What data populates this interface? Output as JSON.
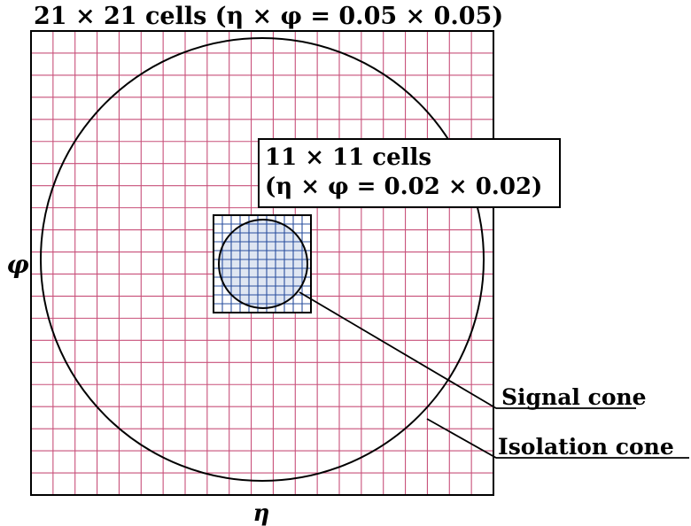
{
  "title": "21 × 21 cells (η × φ = 0.05 × 0.05)",
  "inner_box": {
    "line1": "11 × 11 cells",
    "line2": "(η × φ = 0.02 × 0.02)"
  },
  "axis_x_label": "η",
  "axis_y_label": "φ",
  "labels": {
    "signal_cone": "Signal cone",
    "isolation_cone": "Isolation cone"
  },
  "grids": {
    "outer_cells": 21,
    "inner_cells": 11
  },
  "colors": {
    "outer_grid": "#c8507a",
    "inner_grid": "#2a4f9e",
    "outline": "#000000",
    "signal_fill": "#dfe6f2"
  }
}
